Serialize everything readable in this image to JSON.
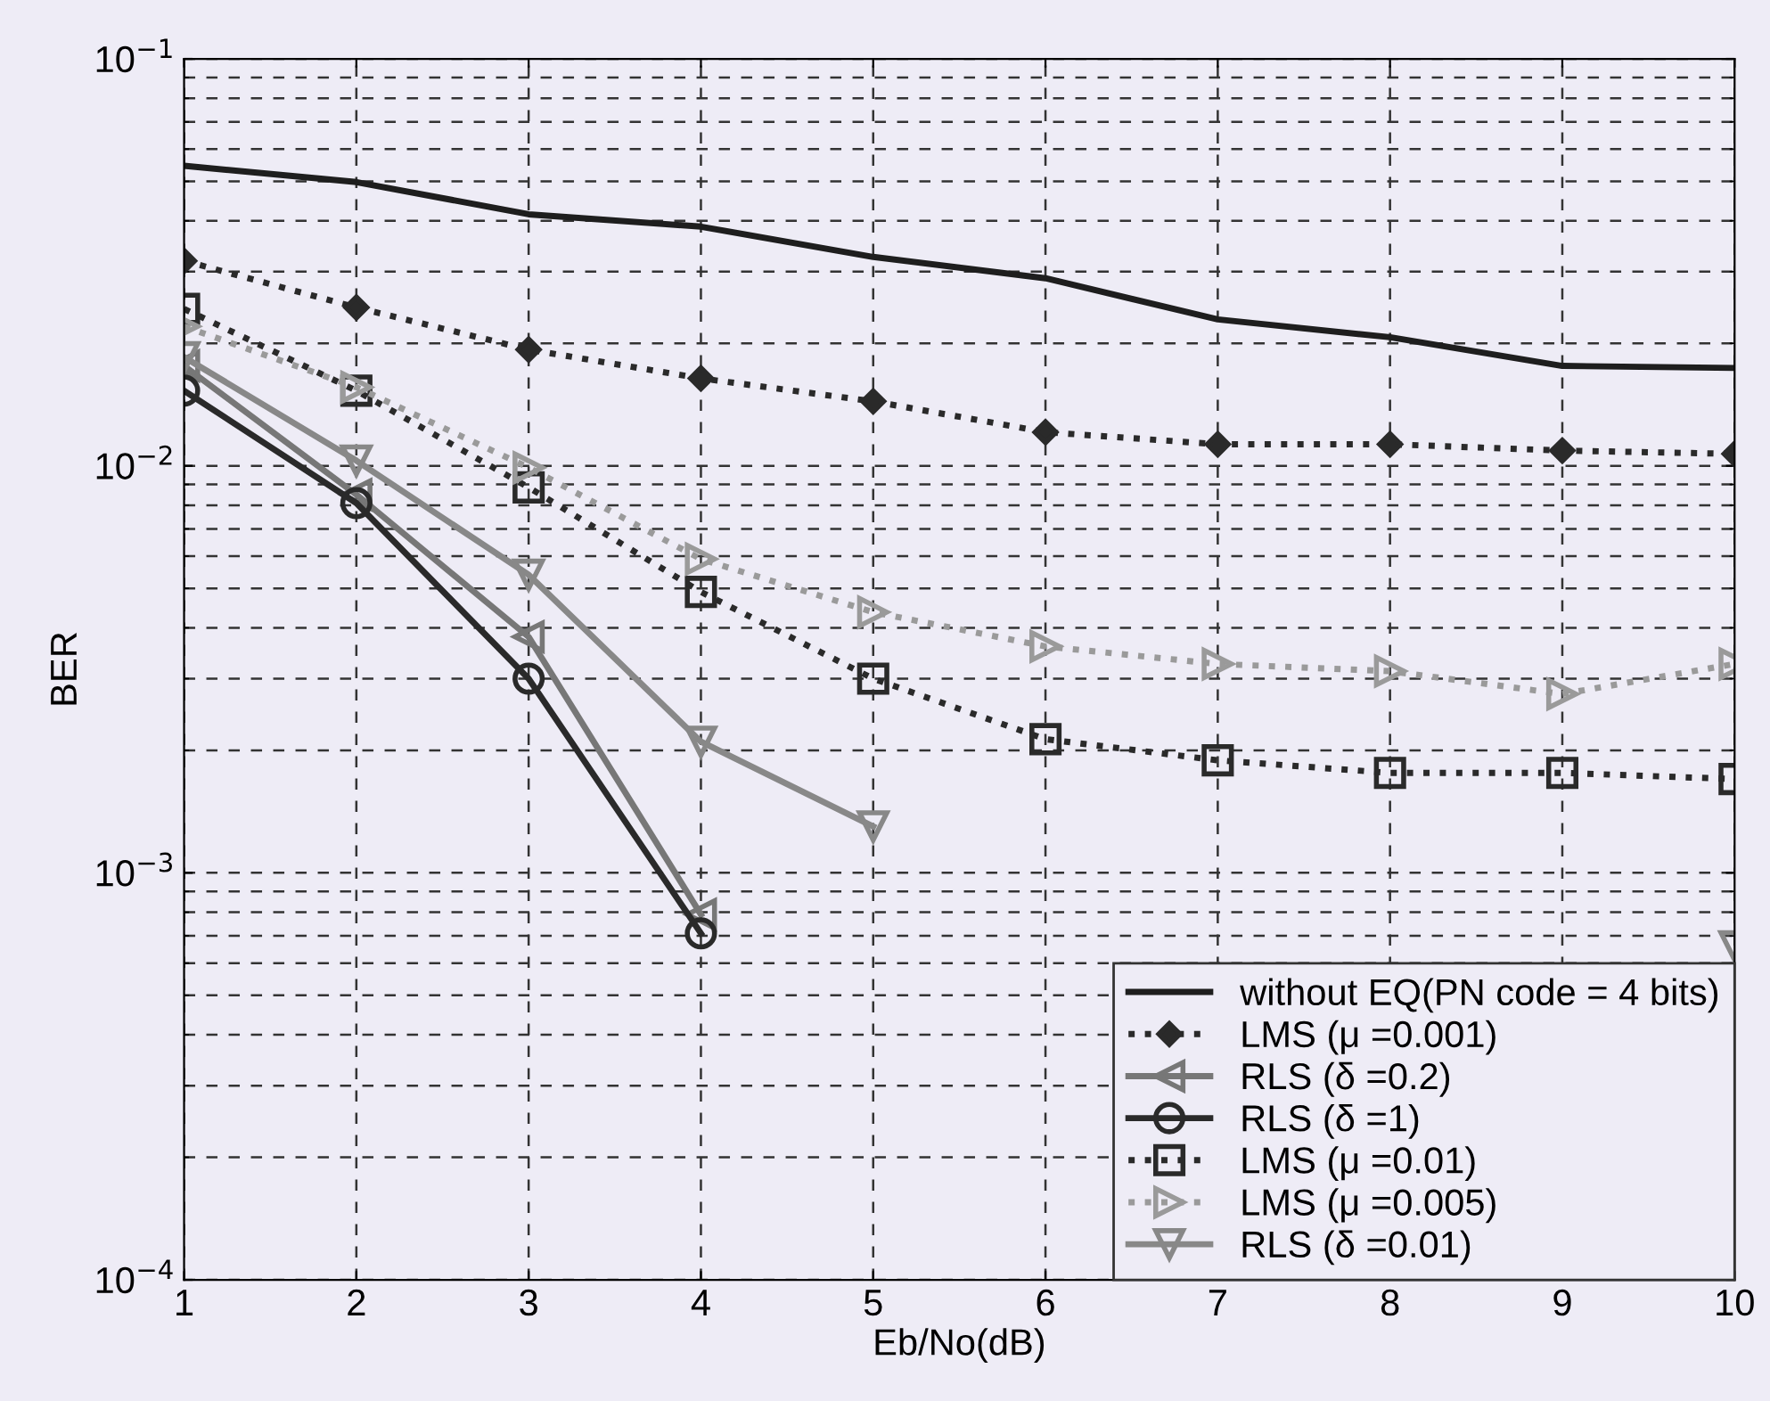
{
  "chart_data": {
    "type": "line",
    "xlabel": "Eb/No(dB)",
    "ylabel": "BER",
    "log": "y",
    "grid": true,
    "legend": "bottom right",
    "x": [
      1,
      2,
      3,
      4,
      5,
      6,
      7,
      8,
      9,
      10
    ],
    "xlim": [
      1,
      10
    ],
    "xticks": [
      1,
      2,
      3,
      4,
      5,
      6,
      7,
      8,
      9,
      10
    ],
    "ylim": [
      0.0001,
      0.1
    ],
    "yticks": [
      {
        "value": 0.0001,
        "label": "10$^{−4}$"
      },
      {
        "value": 0.001,
        "label": "10$^{−3}$"
      },
      {
        "value": 0.01,
        "label": "10$^{−2}$"
      },
      {
        "value": 0.1,
        "label": "10$^{−1}$"
      }
    ],
    "series": [
      {
        "name": "without EQ(PN code = 4 bits)",
        "color": "#1e1e1e",
        "marker": "none",
        "line_style": "solid",
        "values": [
          0.0546,
          0.0498,
          0.0415,
          0.0387,
          0.0326,
          0.0289,
          0.0229,
          0.0207,
          0.0176,
          0.0174
        ]
      },
      {
        "name": "LMS (μ =0.001)",
        "color": "#2a2a2a",
        "marker": "diamond",
        "line_style": "dotted",
        "values": [
          0.0319,
          0.0245,
          0.0193,
          0.0164,
          0.0144,
          0.0121,
          0.0113,
          0.0113,
          0.0109,
          0.0107
        ]
      },
      {
        "name": "RLS (δ =0.2)",
        "color": "#777777",
        "marker": "triangle_left",
        "line_style": "solid",
        "values": [
          0.0176,
          0.0085,
          0.0038,
          0.00079,
          null,
          null,
          null,
          null,
          null,
          null
        ]
      },
      {
        "name": "RLS (δ =1)",
        "color": "#2a2a2a",
        "marker": "circle",
        "line_style": "solid",
        "values": [
          0.0153,
          0.0081,
          0.003,
          0.00071,
          null,
          null,
          null,
          null,
          null,
          null
        ]
      },
      {
        "name": "LMS (μ =0.01)",
        "color": "#2a2a2a",
        "marker": "square",
        "line_style": "dotted",
        "values": [
          0.0243,
          0.0153,
          0.00885,
          0.0049,
          0.003,
          0.00213,
          0.00189,
          0.00176,
          0.00176,
          0.0017
        ]
      },
      {
        "name": "LMS (μ =0.005)",
        "color": "#9a9a9a",
        "marker": "triangle_right",
        "line_style": "dotted",
        "values": [
          0.022,
          0.0156,
          0.0099,
          0.0059,
          0.00437,
          0.0036,
          0.00326,
          0.00313,
          0.00275,
          0.00326
        ]
      },
      {
        "name": "RLS (δ =0.01)",
        "color": "#888888",
        "marker": "triangle_down",
        "line_style": "solid",
        "values": [
          0.0185,
          0.0103,
          0.0054,
          0.0021,
          0.0013,
          null,
          null,
          null,
          null,
          0.00066
        ]
      }
    ]
  }
}
